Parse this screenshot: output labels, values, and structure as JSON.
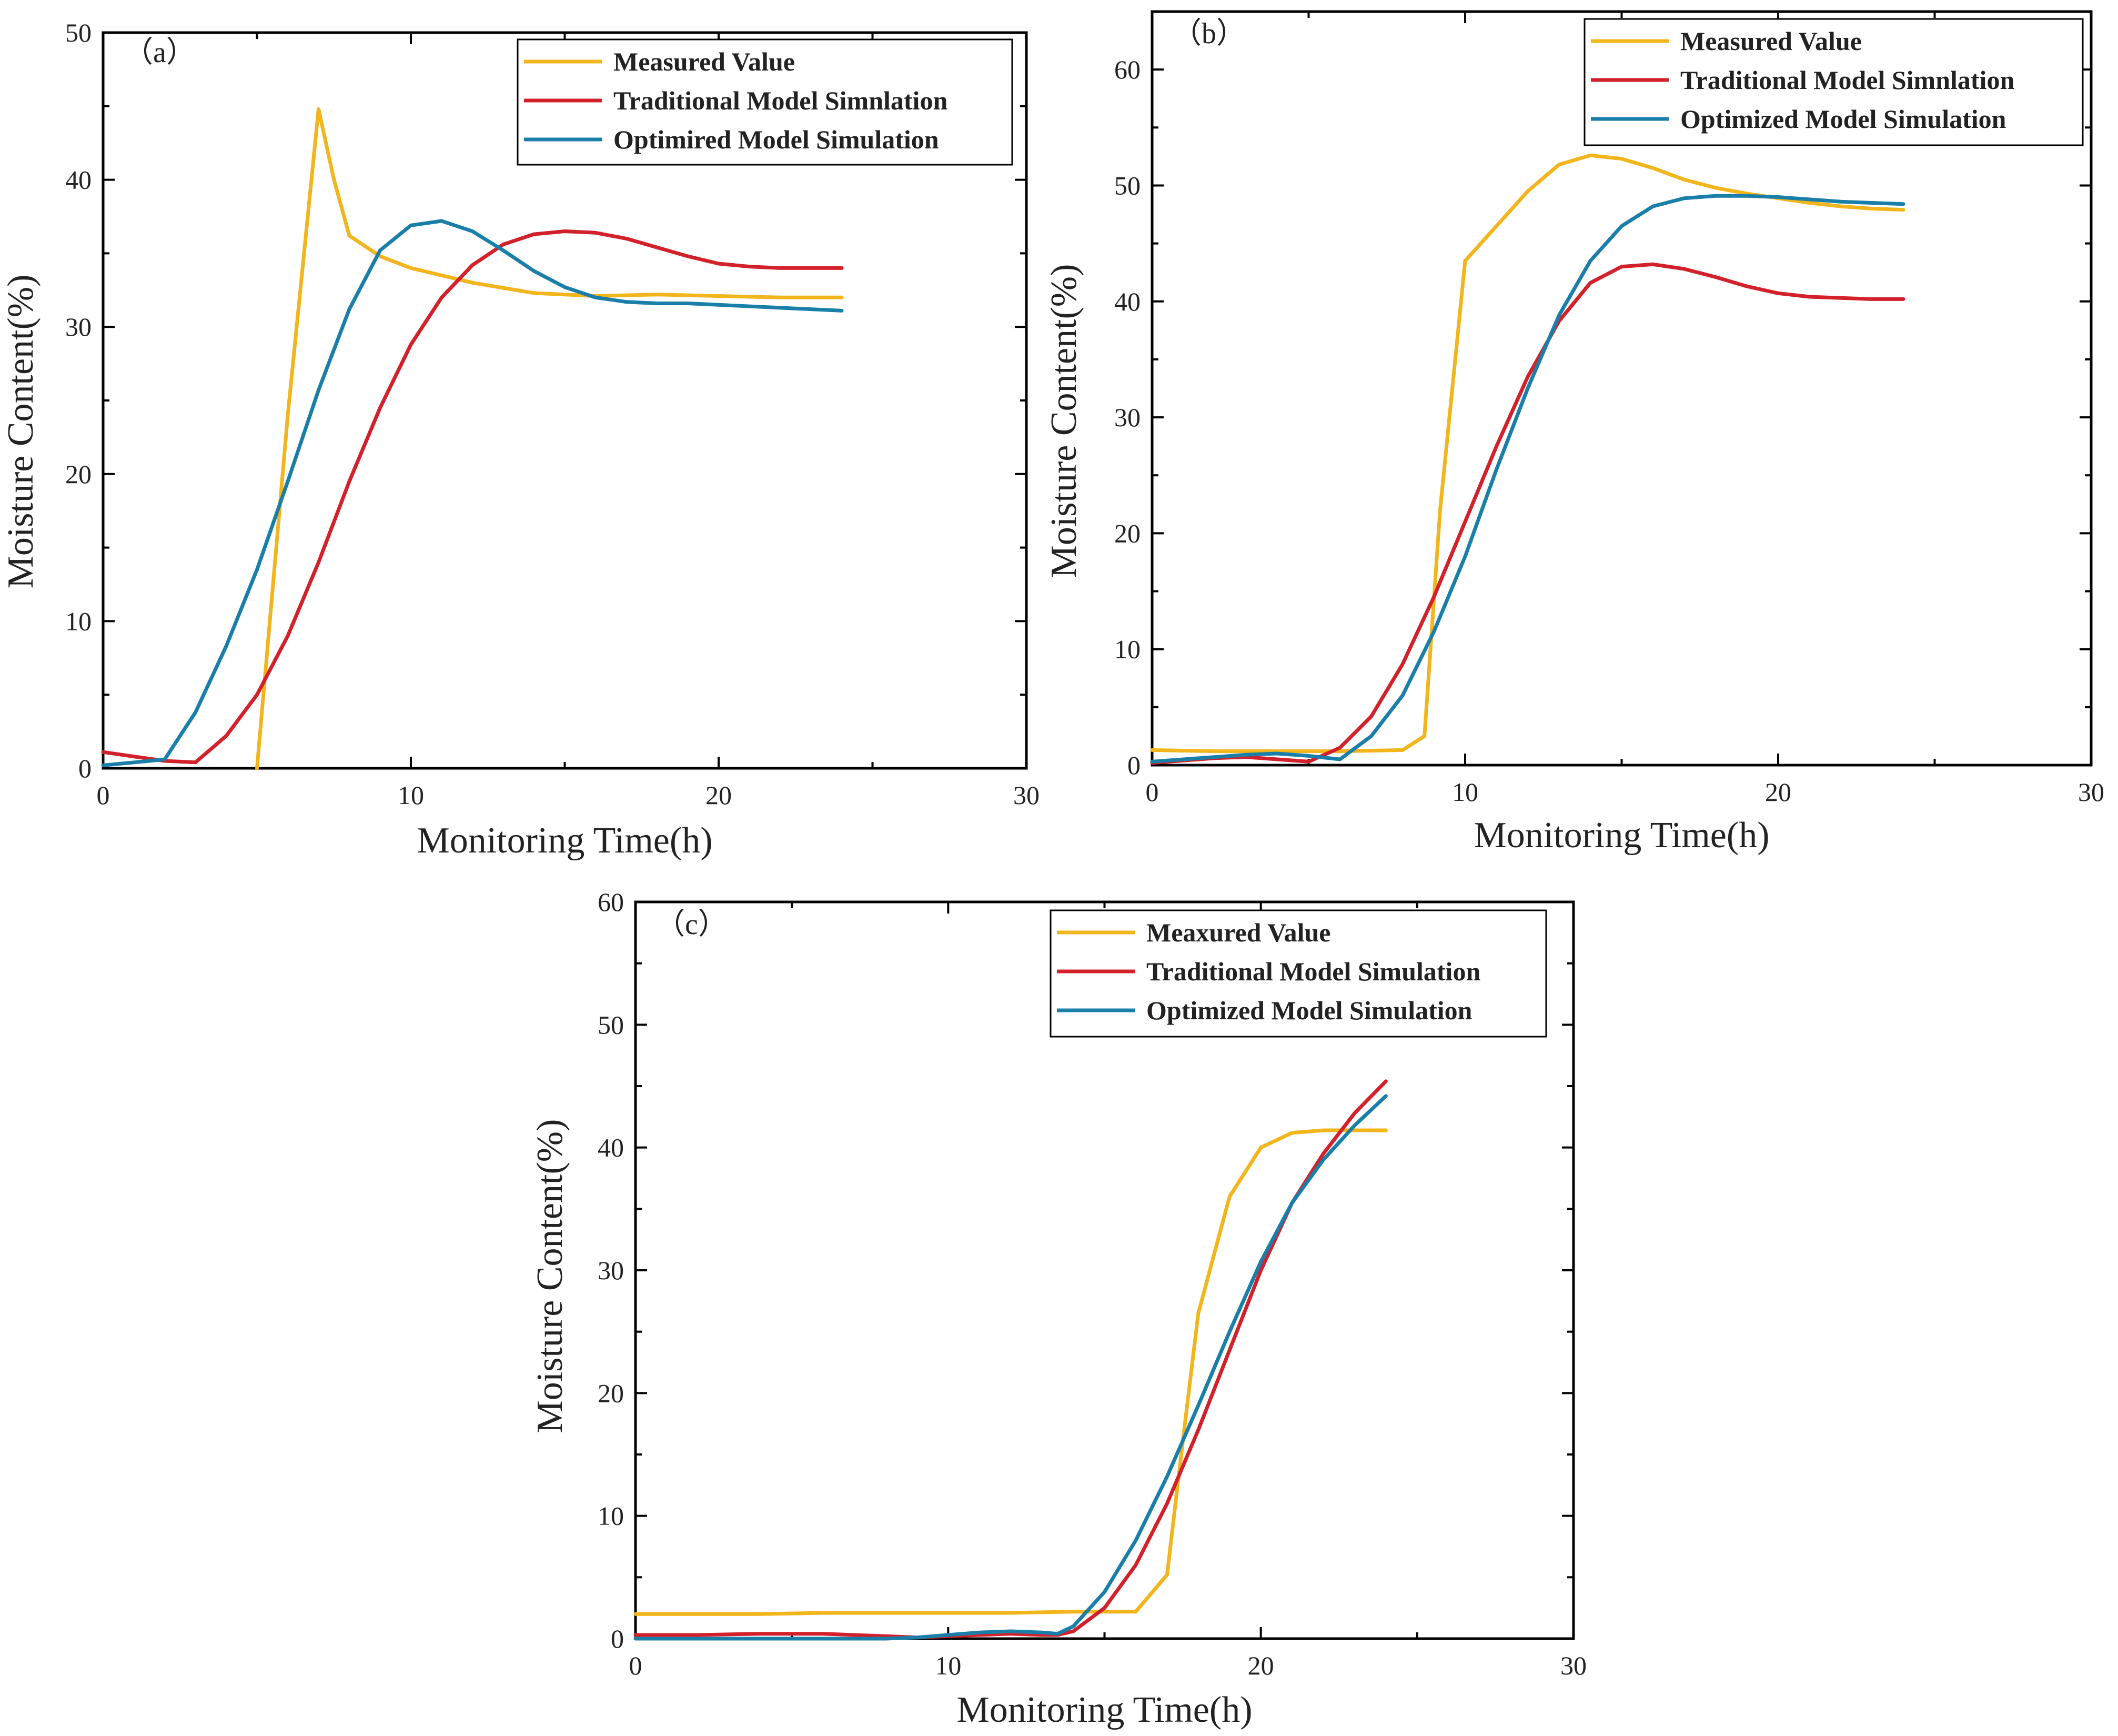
{
  "colors": {
    "measured": "#f2b51c",
    "traditional": "#d3212b",
    "optimized": "#1a7fa8"
  },
  "chart_data": [
    {
      "type": "line",
      "panel_label": "（a）",
      "xlabel": "Monitoring Time(h)",
      "ylabel": "Moisture Content(%)",
      "xlim": [
        0,
        30
      ],
      "ylim": [
        0,
        50
      ],
      "xticks": [
        0,
        10,
        20,
        30
      ],
      "yticks": [
        0,
        10,
        20,
        30,
        40,
        50
      ],
      "legend": "top-right",
      "series": [
        {
          "name": "Measured Value",
          "color_key": "measured",
          "x": [
            5,
            5.5,
            6,
            7,
            7.5,
            8,
            9,
            10,
            12,
            14,
            16,
            18,
            20,
            22,
            24
          ],
          "y": [
            0,
            12,
            24,
            44.8,
            40,
            36.2,
            34.8,
            34,
            33,
            32.3,
            32.1,
            32.2,
            32.1,
            32,
            32
          ]
        },
        {
          "name": "Traditional Model Simnlation",
          "color_key": "traditional",
          "x": [
            0,
            1,
            2,
            3,
            4,
            5,
            6,
            7,
            8,
            9,
            10,
            11,
            12,
            13,
            14,
            15,
            16,
            17,
            18,
            19,
            20,
            21,
            22,
            23,
            24
          ],
          "y": [
            1.1,
            0.8,
            0.5,
            0.4,
            2.2,
            5,
            9,
            14,
            19.5,
            24.5,
            28.8,
            32,
            34.2,
            35.6,
            36.3,
            36.5,
            36.4,
            36,
            35.4,
            34.8,
            34.3,
            34.1,
            34,
            34,
            34
          ]
        },
        {
          "name": "Optimired Model Simulation",
          "color_key": "optimized",
          "x": [
            0,
            1,
            2,
            3,
            4,
            5,
            6,
            7,
            8,
            9,
            10,
            11,
            12,
            13,
            14,
            15,
            16,
            17,
            18,
            19,
            20,
            21,
            22,
            23,
            24
          ],
          "y": [
            0.2,
            0.4,
            0.6,
            3.8,
            8.3,
            13.5,
            19.5,
            25.7,
            31.2,
            35.2,
            36.9,
            37.2,
            36.5,
            35.2,
            33.8,
            32.7,
            32,
            31.7,
            31.6,
            31.6,
            31.5,
            31.4,
            31.3,
            31.2,
            31.1
          ]
        }
      ]
    },
    {
      "type": "line",
      "panel_label": "（b）",
      "xlabel": "Monitoring Time(h)",
      "ylabel": "Moisture Content(%)",
      "xlim": [
        0,
        30
      ],
      "ylim": [
        0,
        65
      ],
      "xticks": [
        0,
        10,
        20,
        30
      ],
      "yticks": [
        0,
        10,
        20,
        30,
        40,
        50,
        60
      ],
      "legend": "top-right",
      "series": [
        {
          "name": "Measured Value",
          "color_key": "measured",
          "x": [
            0,
            2,
            4,
            6,
            8,
            8.7,
            9.2,
            10,
            11,
            12,
            13,
            14,
            15,
            16,
            17,
            18,
            19,
            20,
            21,
            22,
            23,
            24
          ],
          "y": [
            1.3,
            1.2,
            1.2,
            1.2,
            1.3,
            2.5,
            22,
            43.5,
            46.5,
            49.5,
            51.8,
            52.6,
            52.3,
            51.5,
            50.5,
            49.8,
            49.3,
            48.9,
            48.5,
            48.2,
            48,
            47.9
          ]
        },
        {
          "name": "Traditional Model Simnlation",
          "color_key": "traditional",
          "x": [
            0,
            1,
            2,
            3,
            4,
            5,
            6,
            7,
            8,
            9,
            10,
            11,
            12,
            13,
            14,
            15,
            16,
            17,
            18,
            19,
            20,
            21,
            22,
            23,
            24
          ],
          "y": [
            0.2,
            0.4,
            0.6,
            0.7,
            0.5,
            0.3,
            1.5,
            4.2,
            8.7,
            14.5,
            21,
            27.5,
            33.5,
            38.3,
            41.6,
            43,
            43.2,
            42.8,
            42.1,
            41.3,
            40.7,
            40.4,
            40.3,
            40.2,
            40.2
          ]
        },
        {
          "name": "Optimized Model Simulation",
          "color_key": "optimized",
          "x": [
            0,
            1,
            2,
            3,
            4,
            5,
            6,
            7,
            8,
            9,
            10,
            11,
            12,
            13,
            14,
            15,
            16,
            17,
            18,
            19,
            20,
            21,
            22,
            23,
            24
          ],
          "y": [
            0.3,
            0.5,
            0.7,
            0.9,
            1,
            0.8,
            0.5,
            2.5,
            6,
            11.5,
            18,
            25.5,
            32.5,
            38.8,
            43.5,
            46.5,
            48.2,
            48.9,
            49.1,
            49.1,
            49,
            48.8,
            48.6,
            48.5,
            48.4
          ]
        }
      ]
    },
    {
      "type": "line",
      "panel_label": "（c）",
      "xlabel": "Monitoring Time(h)",
      "ylabel": "Moisture Content(%)",
      "xlim": [
        0,
        30
      ],
      "ylim": [
        0,
        60
      ],
      "xticks": [
        0,
        10,
        20,
        30
      ],
      "yticks": [
        0,
        10,
        20,
        30,
        40,
        50,
        60
      ],
      "legend": "top-right",
      "series": [
        {
          "name": "Meaxured Value",
          "color_key": "measured",
          "x": [
            0,
            2,
            4,
            6,
            8,
            10,
            12,
            14,
            15.5,
            16,
            17,
            17.5,
            18,
            19,
            20,
            21,
            22,
            23,
            24
          ],
          "y": [
            2,
            2,
            2,
            2.1,
            2.1,
            2.1,
            2.1,
            2.2,
            2.2,
            2.2,
            5.2,
            16,
            26.5,
            36,
            40,
            41.2,
            41.4,
            41.4,
            41.4
          ]
        },
        {
          "name": "Traditional Model Simulation",
          "color_key": "traditional",
          "x": [
            0,
            2,
            4,
            6,
            8,
            9,
            10,
            11,
            12,
            13,
            13.5,
            14,
            15,
            16,
            17,
            18,
            19,
            20,
            21,
            22,
            23,
            24
          ],
          "y": [
            0.3,
            0.3,
            0.4,
            0.4,
            0.2,
            0.1,
            0.2,
            0.3,
            0.4,
            0.3,
            0.3,
            0.6,
            2.5,
            6,
            11,
            17,
            23.5,
            30,
            35.5,
            39.5,
            42.8,
            45.4
          ]
        },
        {
          "name": "Optimized Model Simulation",
          "color_key": "optimized",
          "x": [
            0,
            2,
            4,
            6,
            8,
            9,
            10,
            11,
            12,
            13,
            13.5,
            14,
            15,
            16,
            17,
            18,
            19,
            20,
            21,
            22,
            23,
            24
          ],
          "y": [
            0,
            0,
            0,
            0,
            0,
            0.1,
            0.3,
            0.5,
            0.6,
            0.5,
            0.4,
            1,
            3.8,
            8,
            13.2,
            19,
            25,
            30.7,
            35.5,
            39,
            41.8,
            44.2
          ]
        }
      ]
    }
  ]
}
